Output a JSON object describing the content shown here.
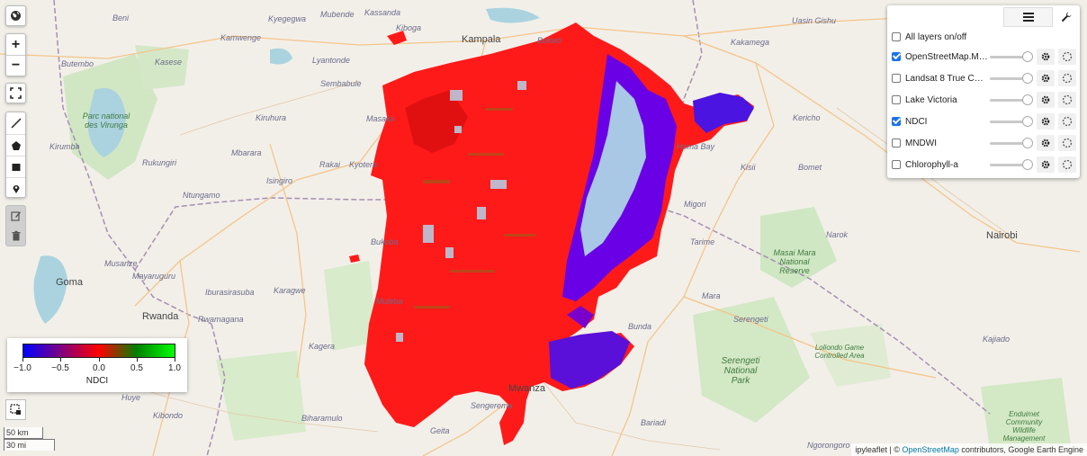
{
  "place_labels": {
    "kampala": "Kampala",
    "beni": "Beni",
    "kasese": "Kasese",
    "butembo": "Butembo",
    "kamwenge": "Kamwenge",
    "kyegegwa": "Kyegegwa",
    "mubende": "Mubende",
    "kassanda": "Kassanda",
    "kiboga": "Kiboga",
    "bukwo": "Bukwo",
    "kakamega": "Kakamega",
    "uasin_gishu": "Uasin Gishu",
    "kericho": "Kericho",
    "homa_bay": "Homa Bay",
    "kisii": "Kisii",
    "bomet": "Bomet",
    "migori": "Migori",
    "tarime": "Tarime",
    "nairobi": "Nairobi",
    "narok": "Narok",
    "kajiado": "Kajiado",
    "masaka": "Masaka",
    "kiruhura": "Kiruhura",
    "rakai": "Rakai",
    "kyotera": "Kyotera",
    "isingiro": "Isingiro",
    "mbarara": "Mbarara",
    "ntungamo": "Ntungamo",
    "kirumba": "Kirumba",
    "rukungiri": "Rukungiri",
    "sembabule": "Sembabule",
    "lyantonde": "Lyantonde",
    "musanze": "Musanze",
    "goma": "Goma",
    "rwanda": "Rwanda",
    "rwamagana": "Rwamagana",
    "karagwe": "Karagwe",
    "ibura": "Iburasirasuba",
    "mayaruguru": "Mayaruguru",
    "kagera": "Kagera",
    "bunda": "Bunda",
    "mara": "Mara",
    "serengeti": "Serengeti",
    "mwanza": "Mwanza",
    "sengerema": "Sengerema",
    "geita": "Geita",
    "bariadi": "Bariadi",
    "biharamulo": "Biharamulo",
    "bukoba": "Bukoba",
    "muleba": "Muleba",
    "huye": "Huye",
    "kibondo": "Kibondo",
    "ngorongoro": "Ngorongoro",
    "virunga": "Parc national des Virunga",
    "masai_mara": "Masai Mara National Reserve",
    "serengeti_np": "Serengeti National Park",
    "loliondo": "Loliondo Game Controlled Area",
    "enduimet": "Enduimet Community Wildlife Management",
    "kasese_park": "Kasese"
  },
  "legend": {
    "title": "NDCI",
    "ticks": [
      "−1.0",
      "−0.5",
      "0.0",
      "0.5",
      "1.0"
    ],
    "colors": [
      "#0000ff",
      "#ff0000",
      "#008000",
      "#00ff00"
    ]
  },
  "scale": {
    "km": "50 km",
    "mi": "30 mi"
  },
  "layers": [
    {
      "name": "All layers on/off",
      "checked": false,
      "is_master": true
    },
    {
      "name": "OpenStreetMap.Mapnik",
      "checked": true
    },
    {
      "name": "Landsat 8 True Color",
      "checked": false
    },
    {
      "name": "Lake Victoria",
      "checked": false
    },
    {
      "name": "NDCI",
      "checked": true
    },
    {
      "name": "MNDWI",
      "checked": false
    },
    {
      "name": "Chlorophyll-a",
      "checked": false
    }
  ],
  "attribution": {
    "prefix": "ipyleaflet | © ",
    "osm_link": "OpenStreetMap",
    "suffix": " contributors, Google Earth Engine"
  },
  "icons": {
    "globe": "globe-icon",
    "zoom_in": "+",
    "zoom_out": "−"
  }
}
